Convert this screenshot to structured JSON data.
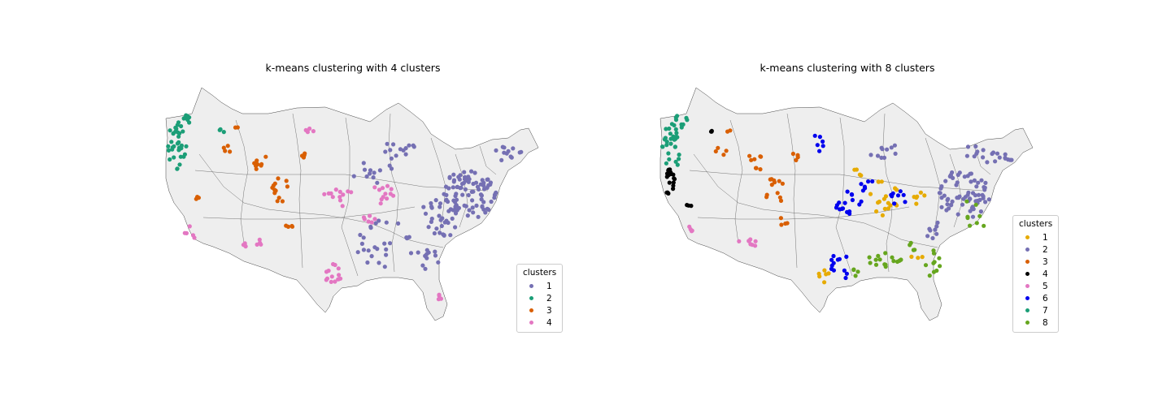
{
  "left_panel": {
    "title": "k-means clustering with 4 clusters",
    "legend_title": "clusters",
    "legend": [
      {
        "label": "1",
        "color": "#7570b3"
      },
      {
        "label": "2",
        "color": "#1b9e77"
      },
      {
        "label": "3",
        "color": "#d95f02"
      },
      {
        "label": "4",
        "color": "#e377c2"
      }
    ]
  },
  "right_panel": {
    "title": "k-means clustering with 8 clusters",
    "legend_title": "clusters",
    "legend": [
      {
        "label": "1",
        "color": "#e6ab02"
      },
      {
        "label": "2",
        "color": "#7570b3"
      },
      {
        "label": "3",
        "color": "#d95f02"
      },
      {
        "label": "4",
        "color": "#000000"
      },
      {
        "label": "5",
        "color": "#e377c2"
      },
      {
        "label": "6",
        "color": "#0000ee"
      },
      {
        "label": "7",
        "color": "#1b9e77"
      },
      {
        "label": "8",
        "color": "#66a61e"
      }
    ]
  }
}
